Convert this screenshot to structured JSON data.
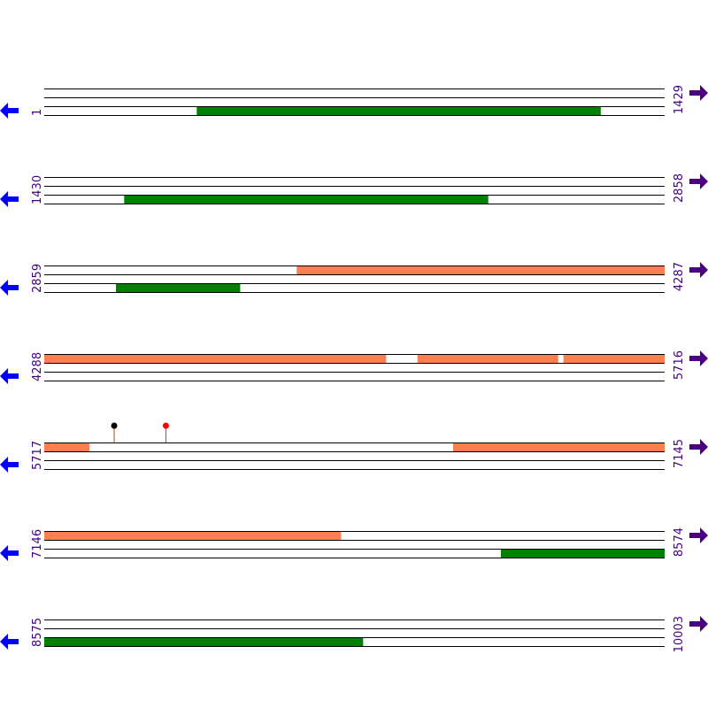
{
  "rows": [
    {
      "start": "1",
      "end": "1429",
      "features": [
        {
          "band": 2,
          "start": 352,
          "end": 1282,
          "color": "#008000"
        }
      ],
      "markers": []
    },
    {
      "start": "1430",
      "end": "2858",
      "features": [
        {
          "band": 2,
          "start": 1614,
          "end": 2452,
          "color": "#008000"
        }
      ],
      "markers": []
    },
    {
      "start": "2859",
      "end": "4287",
      "features": [
        {
          "band": 0,
          "start": 3440,
          "end": 4287,
          "color": "#ff7f50"
        },
        {
          "band": 2,
          "start": 3024,
          "end": 3310,
          "color": "#008000"
        }
      ],
      "markers": []
    },
    {
      "start": "4288",
      "end": "5716",
      "features": [
        {
          "band": 0,
          "start": 4288,
          "end": 5075,
          "color": "#ff7f50"
        },
        {
          "band": 0,
          "start": 5147,
          "end": 5471,
          "color": "#ff7f50"
        },
        {
          "band": 0,
          "start": 5483,
          "end": 5716,
          "color": "#ff7f50"
        }
      ],
      "markers": []
    },
    {
      "start": "5717",
      "end": "7145",
      "features": [
        {
          "band": 0,
          "start": 5717,
          "end": 5821,
          "color": "#ff7f50"
        },
        {
          "band": 0,
          "start": 6658,
          "end": 7145,
          "color": "#ff7f50"
        }
      ],
      "markers": [
        {
          "position": 5878,
          "color": "#000000"
        },
        {
          "position": 5997,
          "color": "#ff0000"
        }
      ]
    },
    {
      "start": "7146",
      "end": "8574",
      "features": [
        {
          "band": 0,
          "start": 7146,
          "end": 7829,
          "color": "#ff7f50"
        },
        {
          "band": 2,
          "start": 8197,
          "end": 8574,
          "color": "#008000"
        }
      ],
      "markers": []
    },
    {
      "start": "8575",
      "end": "10003",
      "features": [
        {
          "band": 2,
          "start": 8575,
          "end": 9309,
          "color": "#008000"
        }
      ],
      "markers": []
    }
  ]
}
